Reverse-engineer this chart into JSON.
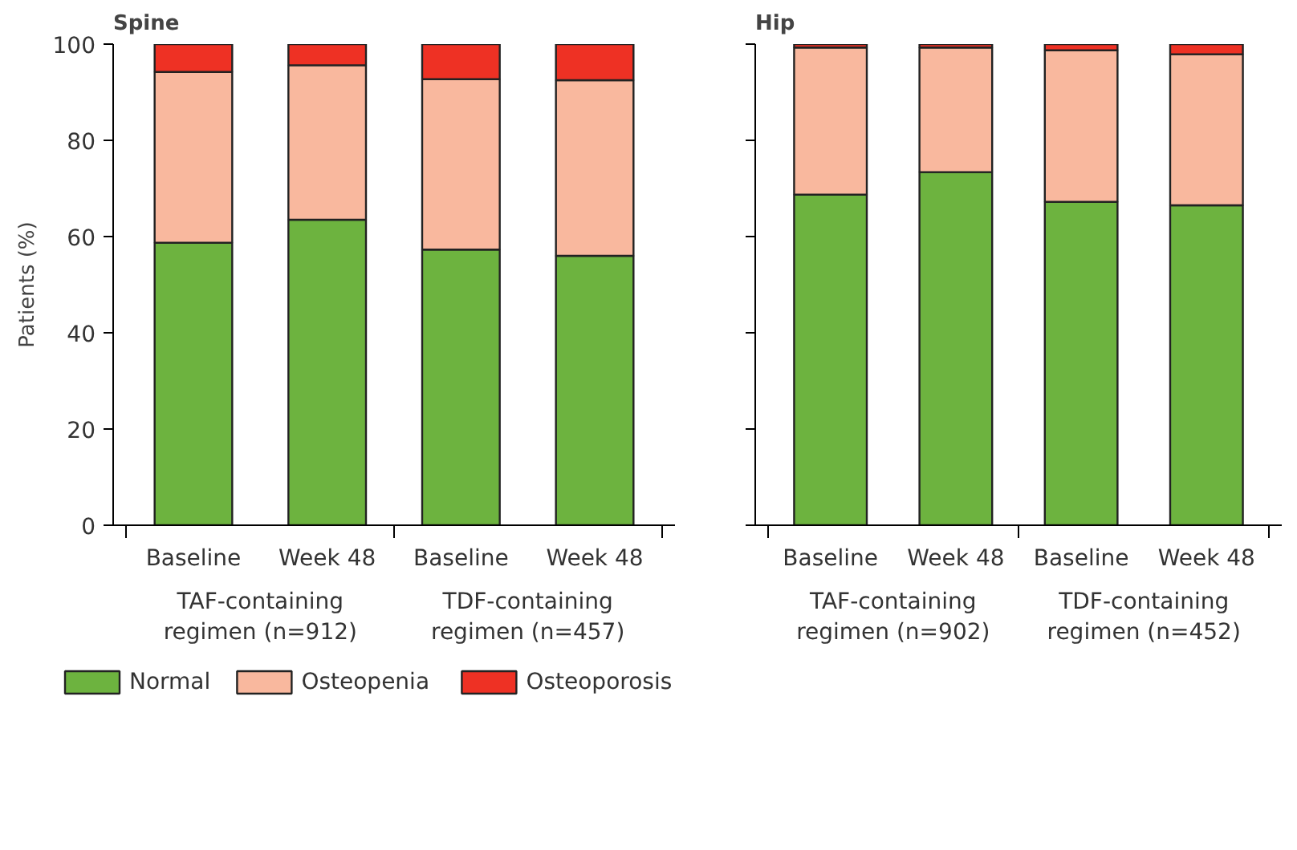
{
  "chart_data": [
    {
      "type": "bar",
      "title": "Spine",
      "ylabel": "Patients (%)",
      "stacked": true,
      "categories": [
        "Baseline",
        "Week 48",
        "Baseline",
        "Week 48"
      ],
      "annotations": [
        "TAF-containing regimen (n=912)",
        "TDF-containing regimen (n=457)"
      ],
      "ylim": [
        0,
        100
      ],
      "yticks": [
        0,
        20,
        40,
        60,
        80,
        100
      ],
      "grid": false,
      "legend": "bottom left",
      "series": [
        {
          "name": "Normal",
          "color": "#6db33f",
          "values": [
            58.7,
            63.5,
            57.3,
            56.0
          ]
        },
        {
          "name": "Osteopenia",
          "color": "#f9b89e",
          "values": [
            35.5,
            32.1,
            35.4,
            36.5
          ]
        },
        {
          "name": "Osteoporosis",
          "color": "#ee3124",
          "values": [
            5.8,
            4.4,
            7.3,
            7.5
          ]
        }
      ]
    },
    {
      "type": "bar",
      "title": "Hip",
      "stacked": true,
      "categories": [
        "Baseline",
        "Week 48",
        "Baseline",
        "Week 48"
      ],
      "annotations": [
        "TAF-containing regimen (n=902)",
        "TDF-containing regimen (n=452)"
      ],
      "ylim": [
        0,
        100
      ],
      "yticks": [
        0,
        20,
        40,
        60,
        80,
        100
      ],
      "grid": false,
      "tick_labels": "x",
      "series": [
        {
          "color": "#6db33f",
          "values": [
            68.7,
            73.4,
            67.2,
            66.5
          ]
        },
        {
          "color": "#f9b89e",
          "values": [
            30.6,
            25.9,
            31.5,
            31.4
          ]
        },
        {
          "color": "#ee3124",
          "values": [
            0.7,
            0.7,
            1.3,
            2.1
          ]
        }
      ]
    }
  ]
}
